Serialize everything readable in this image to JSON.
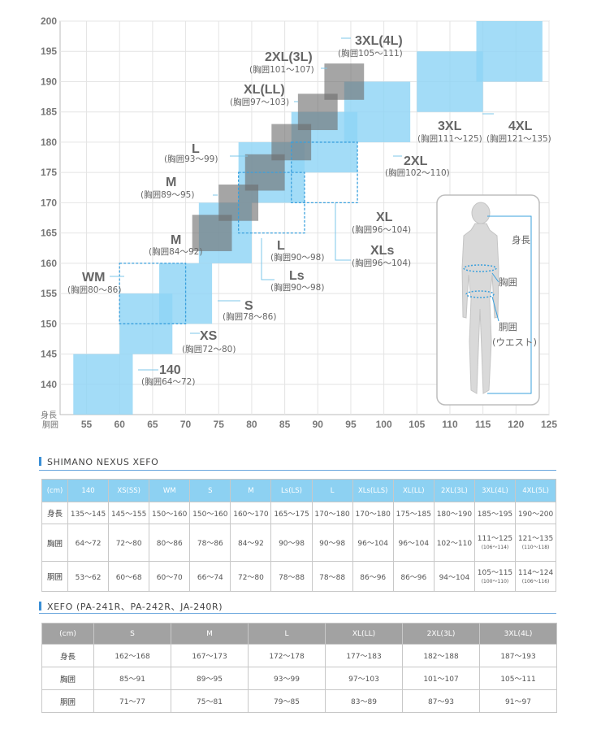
{
  "chart_data": {
    "type": "size-range-rectangles",
    "x_axis": {
      "label": "胴囲",
      "min": 51,
      "max": 125,
      "ticks": [
        55,
        60,
        65,
        70,
        75,
        80,
        85,
        90,
        95,
        100,
        105,
        110,
        115,
        120,
        125
      ]
    },
    "y_axis": {
      "label": "身長",
      "min": 135,
      "max": 200,
      "ticks": [
        140,
        145,
        150,
        155,
        160,
        165,
        170,
        175,
        180,
        185,
        190,
        195,
        200
      ]
    },
    "series": [
      {
        "name": "SHIMANO NEXUS XEFO",
        "style": "filled",
        "color": "#8fd4f5",
        "sizes": [
          {
            "size": "140",
            "chest": "(胸囲64〜72)",
            "waist": [
              53,
              62
            ],
            "height": [
              135,
              145
            ]
          },
          {
            "size": "XS",
            "chest": "(胸囲72〜80)",
            "waist": [
              60,
              68
            ],
            "height": [
              145,
              155
            ]
          },
          {
            "size": "S",
            "chest": "(胸囲78〜86)",
            "waist": [
              66,
              74
            ],
            "height": [
              150,
              160
            ]
          },
          {
            "size": "M",
            "chest": "(胸囲84〜92)",
            "waist": [
              72,
              80
            ],
            "height": [
              160,
              170
            ]
          },
          {
            "size": "L",
            "chest": "(胸囲90〜98)",
            "waist": [
              78,
              88
            ],
            "height": [
              170,
              180
            ]
          },
          {
            "size": "XL",
            "chest": "(胸囲96〜104)",
            "waist": [
              86,
              96
            ],
            "height": [
              175,
              185
            ]
          },
          {
            "size": "2XL",
            "chest": "(胸囲102〜110)",
            "waist": [
              94,
              104
            ],
            "height": [
              180,
              190
            ]
          },
          {
            "size": "3XL",
            "chest": "(胸囲111〜125)",
            "waist": [
              105,
              115
            ],
            "height": [
              185,
              195
            ]
          },
          {
            "size": "4XL",
            "chest": "(胸囲121〜135)",
            "waist": [
              114,
              124
            ],
            "height": [
              190,
              200
            ]
          }
        ]
      },
      {
        "name": "SHIMANO NEXUS XEFO (dashed)",
        "style": "dashed",
        "color": "#3aa0dd",
        "sizes": [
          {
            "size": "WM",
            "chest": "(胸囲80〜86)",
            "waist": [
              60,
              70
            ],
            "height": [
              150,
              160
            ]
          },
          {
            "size": "Ls",
            "chest": "(胸囲90〜98)",
            "waist": [
              78,
              88
            ],
            "height": [
              165,
              175
            ]
          },
          {
            "size": "XLs",
            "chest": "(胸囲96〜104)",
            "waist": [
              86,
              96
            ],
            "height": [
              170,
              180
            ]
          }
        ]
      },
      {
        "name": "XEFO",
        "style": "filled",
        "color": "#6e6e6e",
        "sizes": [
          {
            "size": "S",
            "chest": "",
            "waist": [
              71,
              77
            ],
            "height": [
              162,
              168
            ]
          },
          {
            "size": "M",
            "chest": "(胸囲89〜95)",
            "waist": [
              75,
              81
            ],
            "height": [
              167,
              173
            ]
          },
          {
            "size": "L",
            "chest": "(胸囲93〜99)",
            "waist": [
              79,
              85
            ],
            "height": [
              172,
              178
            ]
          },
          {
            "size": "XL(LL)",
            "chest": "(胸囲97〜103)",
            "waist": [
              83,
              89
            ],
            "height": [
              177,
              183
            ]
          },
          {
            "size": "2XL(3L)",
            "chest": "(胸囲101〜107)",
            "waist": [
              87,
              93
            ],
            "height": [
              182,
              188
            ]
          },
          {
            "size": "3XL(4L)",
            "chest": "(胸囲105〜111)",
            "waist": [
              91,
              97
            ],
            "height": [
              187,
              193
            ]
          }
        ]
      }
    ],
    "figure_labels": {
      "height": "身長",
      "chest": "胸囲",
      "waist": "胴囲",
      "waist_note": "(ウエスト)"
    }
  },
  "table1": {
    "title": "SHIMANO NEXUS XEFO",
    "headers": [
      "(cm)",
      "140",
      "XS(SS)",
      "WM",
      "S",
      "M",
      "Ls(LS)",
      "L",
      "XLs(LLS)",
      "XL(LL)",
      "2XL(3L)",
      "3XL(4L)",
      "4XL(5L)"
    ],
    "rows": [
      {
        "label": "身長",
        "cells": [
          "135〜145",
          "145〜155",
          "150〜160",
          "150〜160",
          "160〜170",
          "165〜175",
          "170〜180",
          "170〜180",
          "175〜185",
          "180〜190",
          "185〜195",
          "190〜200"
        ],
        "notes": [
          "",
          "",
          "",
          "",
          "",
          "",
          "",
          "",
          "",
          "",
          "",
          ""
        ]
      },
      {
        "label": "胸囲",
        "cells": [
          "64〜72",
          "72〜80",
          "80〜86",
          "78〜86",
          "84〜92",
          "90〜98",
          "90〜98",
          "96〜104",
          "96〜104",
          "102〜110",
          "111〜125",
          "121〜135"
        ],
        "notes": [
          "",
          "",
          "",
          "",
          "",
          "",
          "",
          "",
          "",
          "",
          "(106〜114)",
          "(110〜118)"
        ]
      },
      {
        "label": "胴囲",
        "cells": [
          "53〜62",
          "60〜68",
          "60〜70",
          "66〜74",
          "72〜80",
          "78〜88",
          "78〜88",
          "86〜96",
          "86〜96",
          "94〜104",
          "105〜115",
          "114〜124"
        ],
        "notes": [
          "",
          "",
          "",
          "",
          "",
          "",
          "",
          "",
          "",
          "",
          "(100〜110)",
          "(106〜116)"
        ]
      }
    ]
  },
  "table2": {
    "title": "XEFO (PA-241R、PA-242R、JA-240R)",
    "headers": [
      "(cm)",
      "S",
      "M",
      "L",
      "XL(LL)",
      "2XL(3L)",
      "3XL(4L)"
    ],
    "rows": [
      {
        "label": "身長",
        "cells": [
          "162〜168",
          "167〜173",
          "172〜178",
          "177〜183",
          "182〜188",
          "187〜193"
        ]
      },
      {
        "label": "胸囲",
        "cells": [
          "85〜91",
          "89〜95",
          "93〜99",
          "97〜103",
          "101〜107",
          "105〜111"
        ]
      },
      {
        "label": "胴囲",
        "cells": [
          "71〜77",
          "75〜81",
          "79〜85",
          "83〜89",
          "87〜93",
          "91〜97"
        ]
      }
    ]
  }
}
